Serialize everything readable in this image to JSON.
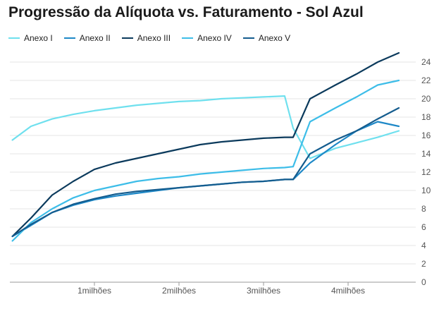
{
  "chart_data": {
    "type": "line",
    "title": "Progressão da Alíquota vs. Faturamento - Sol Azul",
    "xlabel": "",
    "ylabel": "",
    "xlim": [
      0,
      4.8
    ],
    "ylim": [
      0,
      25
    ],
    "x_ticks": [
      {
        "value": 1,
        "label": "1milhões"
      },
      {
        "value": 2,
        "label": "2milhões"
      },
      {
        "value": 3,
        "label": "3milhões"
      },
      {
        "value": 4,
        "label": "4milhões"
      }
    ],
    "y_ticks": [
      0,
      2,
      4,
      6,
      8,
      10,
      12,
      14,
      16,
      18,
      20,
      22,
      24
    ],
    "grid": "horizontal",
    "legend_position": "top-left",
    "x": [
      0.03,
      0.25,
      0.5,
      0.75,
      1.0,
      1.25,
      1.5,
      1.75,
      2.0,
      2.25,
      2.5,
      2.75,
      3.0,
      3.25,
      3.35,
      3.55,
      3.85,
      4.1,
      4.35,
      4.6
    ],
    "series": [
      {
        "name": "Anexo I",
        "color": "#6FE0EE",
        "values": [
          15.5,
          17.0,
          17.8,
          18.3,
          18.7,
          19.0,
          19.3,
          19.5,
          19.7,
          19.8,
          20.0,
          20.1,
          20.2,
          20.3,
          16.8,
          13.5,
          14.6,
          15.2,
          15.8,
          16.5
        ]
      },
      {
        "name": "Anexo II",
        "color": "#1E88C7",
        "values": [
          5.0,
          6.2,
          7.6,
          8.4,
          9.0,
          9.4,
          9.7,
          10.0,
          10.3,
          10.5,
          10.7,
          10.9,
          11.0,
          11.2,
          11.2,
          13.0,
          15.0,
          16.5,
          17.5,
          17.0
        ]
      },
      {
        "name": "Anexo III",
        "color": "#0B3A5C",
        "values": [
          5.0,
          7.0,
          9.5,
          11.0,
          12.3,
          13.0,
          13.5,
          14.0,
          14.5,
          15.0,
          15.3,
          15.5,
          15.7,
          15.8,
          15.8,
          20.0,
          21.5,
          22.7,
          24.0,
          25.0
        ]
      },
      {
        "name": "Anexo IV",
        "color": "#3DBDE8",
        "values": [
          4.5,
          6.5,
          8.0,
          9.2,
          10.0,
          10.5,
          11.0,
          11.3,
          11.5,
          11.8,
          12.0,
          12.2,
          12.4,
          12.5,
          12.6,
          17.5,
          19.0,
          20.2,
          21.5,
          22.0
        ]
      },
      {
        "name": "Anexo V",
        "color": "#145C8E",
        "values": [
          5.0,
          6.3,
          7.6,
          8.5,
          9.1,
          9.6,
          9.9,
          10.1,
          10.3,
          10.5,
          10.7,
          10.9,
          11.0,
          11.2,
          11.2,
          14.0,
          15.5,
          16.5,
          17.8,
          19.0
        ]
      }
    ]
  }
}
